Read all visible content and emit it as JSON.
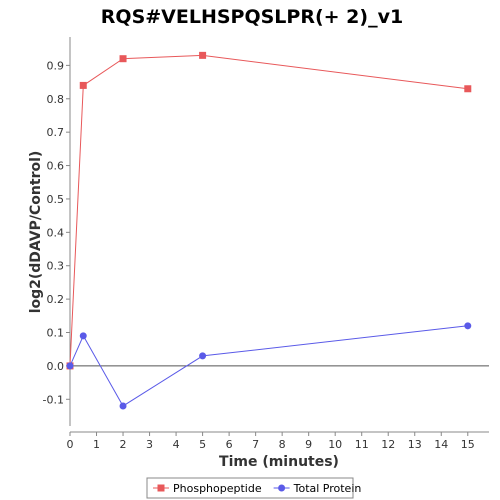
{
  "chart_data": {
    "type": "line",
    "title": "RQS#VELHSPQSLPR(+ 2)_v1",
    "xlabel": "Time (minutes)",
    "ylabel": "log2(dDAVP/Control)",
    "xlim": [
      0,
      15.8
    ],
    "ylim": [
      -0.18,
      0.985
    ],
    "xticks": [
      0,
      1,
      2,
      3,
      4,
      5,
      6,
      7,
      8,
      9,
      10,
      11,
      12,
      13,
      14,
      15
    ],
    "yticks": [
      -0.1,
      0.0,
      0.1,
      0.2,
      0.3,
      0.4,
      0.5,
      0.6,
      0.7,
      0.8,
      0.9
    ],
    "ytick_labels": [
      "-0.1",
      "0.0",
      "0.1",
      "0.2",
      "0.3",
      "0.4",
      "0.5",
      "0.6",
      "0.7",
      "0.8",
      "0.9"
    ],
    "zero_line": true,
    "legend_position": "bottom",
    "series": [
      {
        "name": "Phosphopeptide",
        "color": "#e8585a",
        "marker": "square",
        "x": [
          0,
          0.5,
          2,
          5,
          15
        ],
        "values": [
          0.0,
          0.84,
          0.92,
          0.93,
          0.83
        ]
      },
      {
        "name": "Total Protein",
        "color": "#5a5ae8",
        "marker": "circle",
        "x": [
          0,
          0.5,
          2,
          5,
          15
        ],
        "values": [
          0.0,
          0.09,
          -0.12,
          0.03,
          0.12
        ]
      }
    ]
  }
}
